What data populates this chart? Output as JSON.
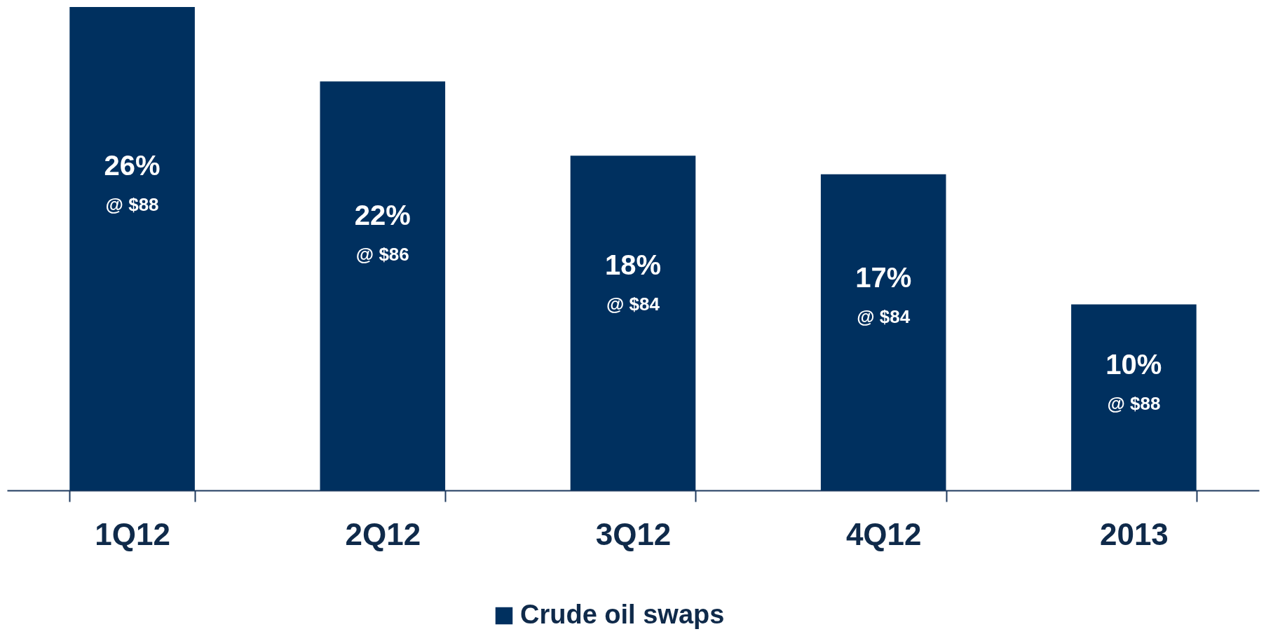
{
  "chart_data": {
    "type": "bar",
    "categories": [
      "1Q12",
      "2Q12",
      "3Q12",
      "4Q12",
      "2013"
    ],
    "series": [
      {
        "name": "Crude oil swaps",
        "color": "#00305f",
        "values": [
          26,
          22,
          18,
          17,
          10
        ],
        "value_labels": [
          "26%",
          "22%",
          "18%",
          "17%",
          "10%"
        ]
      }
    ],
    "annotations": [
      "@ $88",
      "@ $86",
      "@ $84",
      "@ $84",
      "@ $88"
    ],
    "legend": "bottom",
    "grid": false
  }
}
